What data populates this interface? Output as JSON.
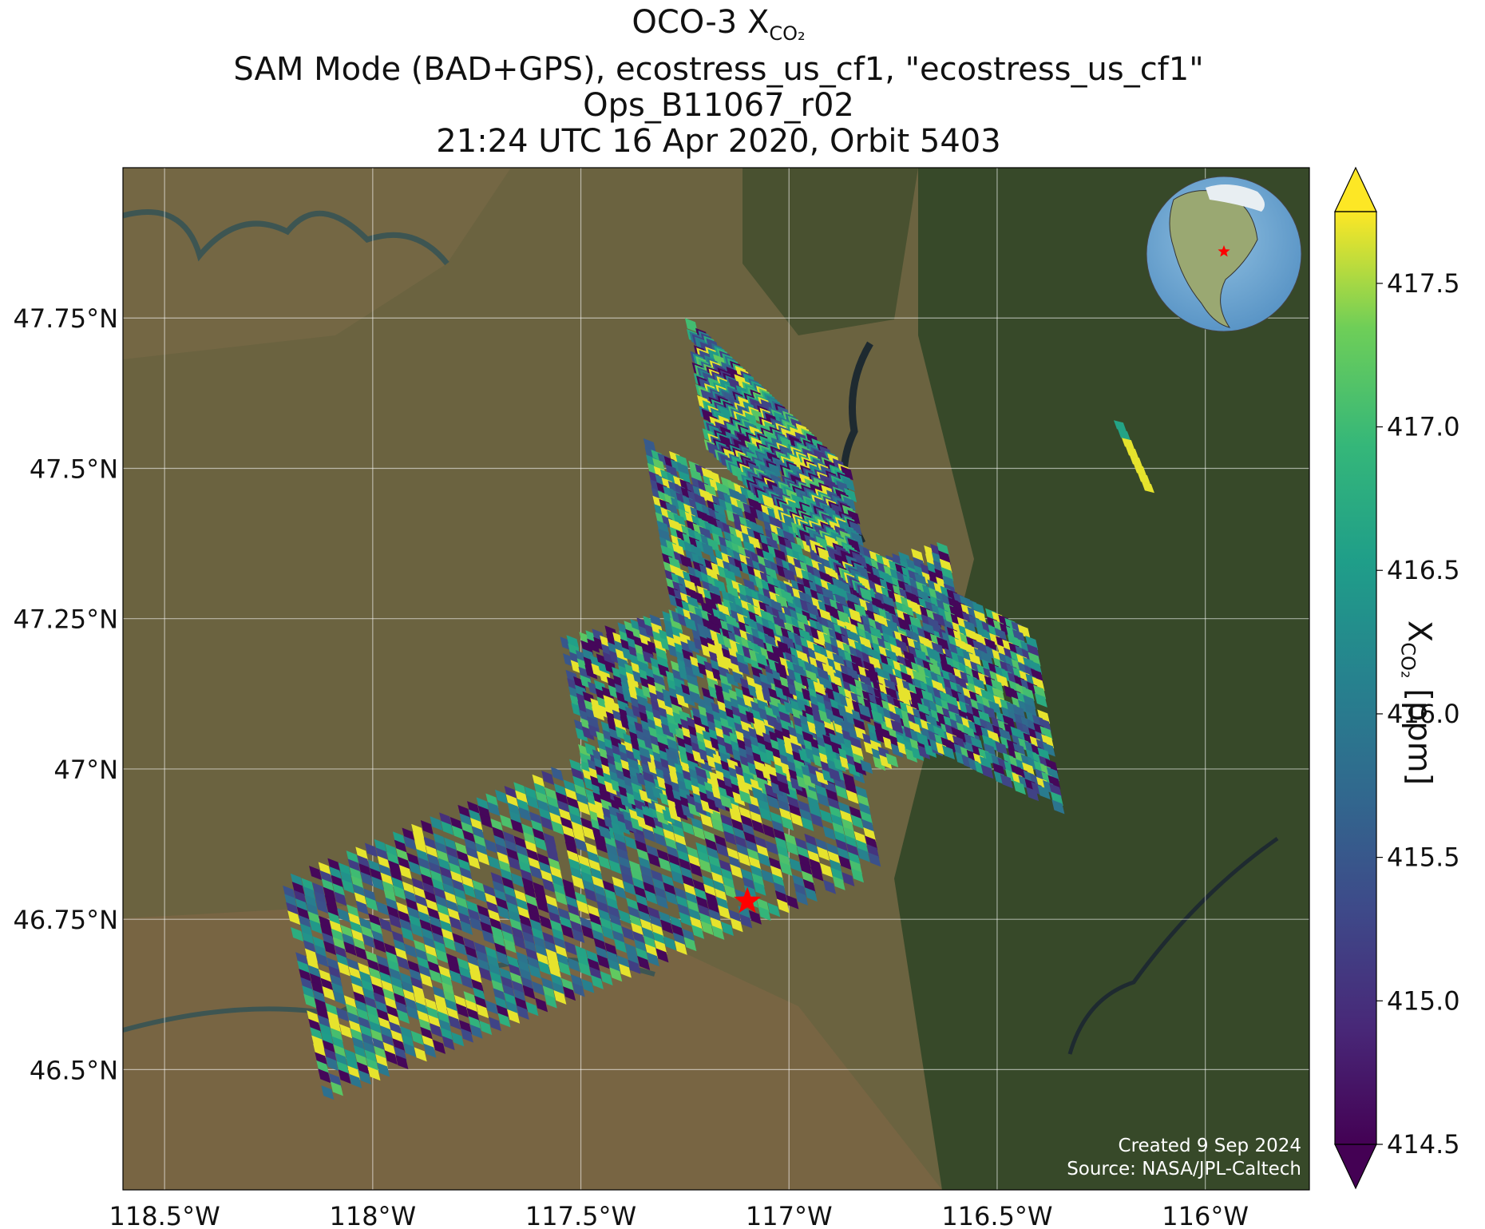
{
  "title": {
    "line1_prefix": "OCO-3 X",
    "line1_sub": "CO₂",
    "line2": "SAM Mode (BAD+GPS), ecostress_us_cf1, \"ecostress_us_cf1\"",
    "line3": "Ops_B11067_r02",
    "line4": "21:24 UTC 16 Apr 2020, Orbit 5403"
  },
  "map": {
    "lon_range": [
      -118.6,
      -115.75
    ],
    "lat_range": [
      46.3,
      48.0
    ],
    "lon_ticks": [
      {
        "value": -118.5,
        "label": "118.5°W"
      },
      {
        "value": -118.0,
        "label": "118°W"
      },
      {
        "value": -117.5,
        "label": "117.5°W"
      },
      {
        "value": -117.0,
        "label": "117°W"
      },
      {
        "value": -116.5,
        "label": "116.5°W"
      },
      {
        "value": -116.0,
        "label": "116°W"
      }
    ],
    "lat_ticks": [
      {
        "value": 47.75,
        "label": "47.75°N"
      },
      {
        "value": 47.5,
        "label": "47.5°N"
      },
      {
        "value": 47.25,
        "label": "47.25°N"
      },
      {
        "value": 47.0,
        "label": "47°N"
      },
      {
        "value": 46.75,
        "label": "46.75°N"
      },
      {
        "value": 46.5,
        "label": "46.5°N"
      }
    ],
    "target_marker": {
      "lon": -117.1,
      "lat": 46.78,
      "color": "#ff0000",
      "icon": "star-icon"
    },
    "inset_globe": {
      "icon": "globe-icon",
      "marker_color": "#ff0000"
    },
    "basemap": "satellite imagery",
    "gridlines": true
  },
  "colorbar": {
    "label_prefix": "X",
    "label_sub": "CO₂",
    "label_suffix": " [ppm]",
    "min": 414.5,
    "max": 417.75,
    "extend": "both",
    "colormap": "viridis",
    "ticks": [
      "414.5",
      "415.0",
      "415.5",
      "416.0",
      "416.5",
      "417.0",
      "417.5"
    ]
  },
  "credits": {
    "created": "Created 9 Sep 2024",
    "source": "Source: NASA/JPL-Caltech"
  }
}
